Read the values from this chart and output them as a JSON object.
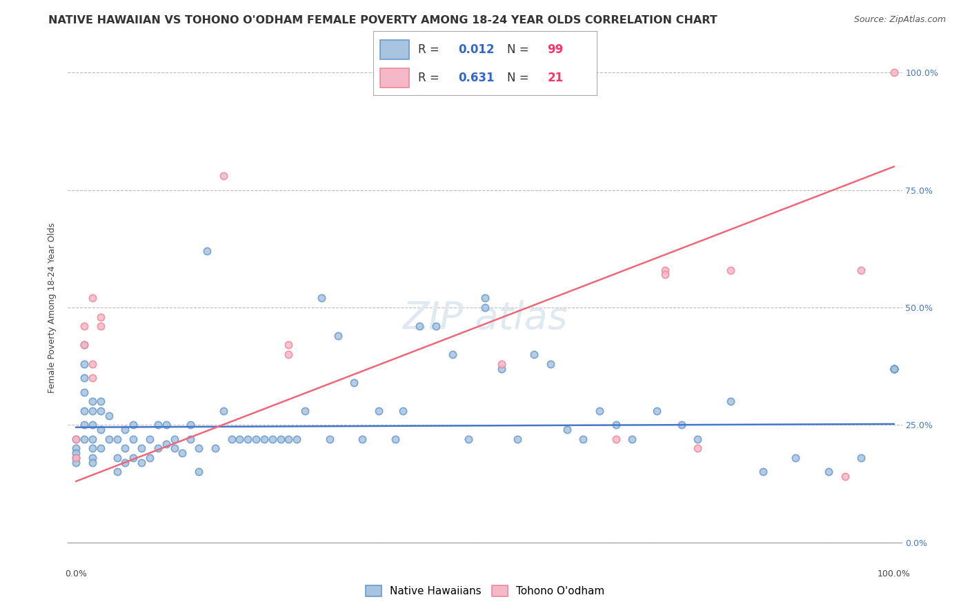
{
  "title": "NATIVE HAWAIIAN VS TOHONO O'ODHAM FEMALE POVERTY AMONG 18-24 YEAR OLDS CORRELATION CHART",
  "source": "Source: ZipAtlas.com",
  "ylabel": "Female Poverty Among 18-24 Year Olds",
  "xlim": [
    0.0,
    1.0
  ],
  "ylim": [
    0.0,
    1.0
  ],
  "blue_color": "#A8C4E0",
  "blue_edge_color": "#6699CC",
  "pink_color": "#F5B8C8",
  "pink_edge_color": "#EE8899",
  "blue_line_color": "#4477CC",
  "pink_line_color": "#EE6677",
  "legend_r_color": "#3366CC",
  "legend_n_color": "#FF3366",
  "watermark_text": "ZIP atlas",
  "native_hawaiians": {
    "x": [
      0.0,
      0.0,
      0.0,
      0.0,
      0.0,
      0.01,
      0.01,
      0.01,
      0.01,
      0.01,
      0.01,
      0.01,
      0.02,
      0.02,
      0.02,
      0.02,
      0.02,
      0.02,
      0.02,
      0.03,
      0.03,
      0.03,
      0.03,
      0.04,
      0.04,
      0.05,
      0.05,
      0.05,
      0.06,
      0.06,
      0.06,
      0.07,
      0.07,
      0.07,
      0.08,
      0.08,
      0.09,
      0.09,
      0.1,
      0.1,
      0.11,
      0.11,
      0.12,
      0.12,
      0.13,
      0.14,
      0.14,
      0.15,
      0.15,
      0.16,
      0.17,
      0.18,
      0.19,
      0.2,
      0.21,
      0.22,
      0.23,
      0.24,
      0.25,
      0.26,
      0.27,
      0.28,
      0.3,
      0.31,
      0.32,
      0.34,
      0.35,
      0.37,
      0.39,
      0.4,
      0.42,
      0.44,
      0.46,
      0.48,
      0.5,
      0.5,
      0.52,
      0.54,
      0.56,
      0.58,
      0.6,
      0.62,
      0.64,
      0.66,
      0.68,
      0.71,
      0.74,
      0.76,
      0.8,
      0.84,
      0.88,
      0.92,
      0.96,
      1.0,
      1.0,
      1.0,
      1.0,
      1.0,
      1.0
    ],
    "y": [
      0.2,
      0.22,
      0.19,
      0.18,
      0.17,
      0.22,
      0.25,
      0.28,
      0.32,
      0.35,
      0.38,
      0.42,
      0.2,
      0.22,
      0.25,
      0.28,
      0.3,
      0.18,
      0.17,
      0.2,
      0.24,
      0.28,
      0.3,
      0.22,
      0.27,
      0.15,
      0.18,
      0.22,
      0.17,
      0.2,
      0.24,
      0.18,
      0.22,
      0.25,
      0.17,
      0.2,
      0.18,
      0.22,
      0.2,
      0.25,
      0.21,
      0.25,
      0.2,
      0.22,
      0.19,
      0.22,
      0.25,
      0.2,
      0.15,
      0.62,
      0.2,
      0.28,
      0.22,
      0.22,
      0.22,
      0.22,
      0.22,
      0.22,
      0.22,
      0.22,
      0.22,
      0.28,
      0.52,
      0.22,
      0.44,
      0.34,
      0.22,
      0.28,
      0.22,
      0.28,
      0.46,
      0.46,
      0.4,
      0.22,
      0.5,
      0.52,
      0.37,
      0.22,
      0.4,
      0.38,
      0.24,
      0.22,
      0.28,
      0.25,
      0.22,
      0.28,
      0.25,
      0.22,
      0.3,
      0.15,
      0.18,
      0.15,
      0.18,
      0.37,
      0.37,
      0.37,
      0.37,
      0.37,
      0.37
    ]
  },
  "tohono_oodham": {
    "x": [
      0.0,
      0.0,
      0.01,
      0.01,
      0.02,
      0.02,
      0.02,
      0.03,
      0.03,
      0.18,
      0.26,
      0.26,
      0.52,
      0.66,
      0.72,
      0.72,
      0.76,
      0.8,
      0.94,
      0.96,
      1.0
    ],
    "y": [
      0.22,
      0.18,
      0.42,
      0.46,
      0.35,
      0.38,
      0.52,
      0.46,
      0.48,
      0.78,
      0.42,
      0.4,
      0.38,
      0.22,
      0.58,
      0.57,
      0.2,
      0.58,
      0.14,
      0.58,
      1.0
    ]
  },
  "blue_line": {
    "x0": 0.0,
    "x1": 1.0,
    "y0": 0.245,
    "y1": 0.252
  },
  "pink_line": {
    "x0": 0.0,
    "x1": 1.0,
    "y0": 0.13,
    "y1": 0.8
  },
  "legend": {
    "blue_R": "0.012",
    "blue_N": "99",
    "pink_R": "0.631",
    "pink_N": "21"
  },
  "background_color": "#FFFFFF",
  "grid_color": "#BBBBBB",
  "title_fontsize": 11.5,
  "source_fontsize": 9,
  "axis_label_fontsize": 9,
  "tick_fontsize": 9,
  "legend_fontsize": 12,
  "watermark_fontsize": 40,
  "watermark_color": "#E0E8F0",
  "scatter_size": 55,
  "scatter_alpha": 0.85,
  "scatter_linewidth": 1.2
}
